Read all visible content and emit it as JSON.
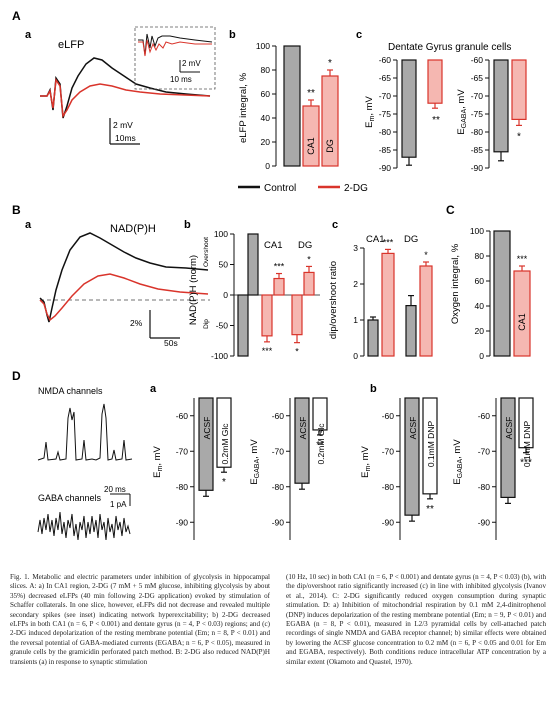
{
  "panel_labels": {
    "A": "A",
    "B": "B",
    "C": "C",
    "D": "D"
  },
  "panelA": {
    "a": {
      "sub": "a",
      "title": "eLFP",
      "inset_scale_mv": "2 mV",
      "inset_scale_ms": "10 ms",
      "scale_mv": "2 mV",
      "scale_ms": "10ms"
    },
    "legend": {
      "control": "Control",
      "dg2": "2-DG"
    },
    "b": {
      "sub": "b",
      "ylabel": "eLFP integral, %",
      "ticks": [
        "100",
        "80",
        "60",
        "40",
        "20",
        "0"
      ],
      "bar_labels": [
        "CA1",
        "DG"
      ],
      "sig": [
        "**",
        "*"
      ]
    },
    "c": {
      "sub": "c",
      "title": "Dentate Gyrus granule cells",
      "em_label": "E",
      "em_sub": "m",
      "em_unit": ", mV",
      "egaba_label": "E",
      "egaba_sub": "GABA",
      "egaba_unit": ", mV",
      "em_ticks": [
        "-60",
        "-65",
        "-70",
        "-75",
        "-80",
        "-85",
        "-90"
      ],
      "egaba_ticks": [
        "-60",
        "-65",
        "-70",
        "-75",
        "-80",
        "-85",
        "-90"
      ],
      "sig": [
        "**",
        "*"
      ]
    }
  },
  "panelB": {
    "a": {
      "sub": "a",
      "title": "NAD(P)H",
      "scale_pct": "2%",
      "scale_s": "50s"
    },
    "b": {
      "sub": "b",
      "ylabel": "NAD(P)H (norm)",
      "yunit_top": "Overshoot",
      "yunit_bot": "Dip",
      "ticks": [
        "100",
        "50",
        "0",
        "-50",
        "-100"
      ],
      "group_labels": [
        "CA1",
        "DG"
      ],
      "sig_over": [
        "***",
        "*"
      ],
      "sig_dip": [
        "***",
        "*"
      ]
    },
    "c": {
      "sub": "c",
      "ylabel": "dip/overshoot ratio",
      "ticks": [
        "3",
        "2",
        "1",
        "0"
      ],
      "group_labels": [
        "CA1",
        "DG"
      ],
      "sig": [
        "***",
        "*"
      ]
    }
  },
  "panelC": {
    "sub": "C",
    "ylabel": "Oxygen integral, %",
    "ticks": [
      "100",
      "80",
      "60",
      "40",
      "20",
      "0"
    ],
    "bar_label": "CA1",
    "sig": "***"
  },
  "panelD": {
    "nmda": "NMDA channels",
    "gaba": "GABA channels",
    "scale_ms": "20 ms",
    "scale_pa": "1 pA",
    "a": {
      "sub": "a",
      "em_label": "E",
      "em_sub": "m",
      "em_unit": ", mV",
      "eg_label": "E",
      "eg_sub": "GABA",
      "eg_unit": ", mV",
      "ticks": [
        "-60",
        "-70",
        "-80",
        "-90"
      ],
      "ctrl": "ACSF",
      "treat": "0.2mM Glc",
      "treat2": "0.2mM Glc",
      "sig": [
        "*",
        "**"
      ]
    },
    "b": {
      "sub": "b",
      "em_label": "E",
      "em_sub": "m",
      "em_unit": ", mV",
      "eg_label": "E",
      "eg_sub": "GABA",
      "eg_unit": ", mV",
      "ticks": [
        "-60",
        "-70",
        "-80",
        "-90"
      ],
      "ctrl": "ACSF",
      "treat": "0.1mM DNP",
      "treat2": "0.1mM DNP",
      "sig": [
        "**",
        "***"
      ]
    }
  },
  "chart_data": [
    {
      "type": "bar",
      "panel": "A-b",
      "categories": [
        "Control",
        "CA1",
        "DG"
      ],
      "values": [
        100,
        50,
        75
      ],
      "ylabel": "eLFP integral, %",
      "ylim": [
        0,
        100
      ]
    },
    {
      "type": "bar",
      "panel": "A-c-Em",
      "categories": [
        "Control",
        "2-DG"
      ],
      "values": [
        -87,
        -72
      ],
      "ylabel": "Em, mV",
      "ylim": [
        -90,
        -60
      ]
    },
    {
      "type": "bar",
      "panel": "A-c-EGABA",
      "categories": [
        "Control",
        "2-DG"
      ],
      "values": [
        -85.5,
        -76.5
      ],
      "ylabel": "EGABA, mV",
      "ylim": [
        -90,
        -60
      ]
    },
    {
      "type": "bar",
      "panel": "B-b",
      "categories": [
        "dip",
        "overshoot",
        "CA1 dip",
        "CA1 overshoot",
        "DG dip",
        "DG overshoot"
      ],
      "values": [
        -100,
        100,
        -67,
        27,
        -65,
        37
      ],
      "ylabel": "NAD(P)H (norm)",
      "ylim": [
        -100,
        100
      ]
    },
    {
      "type": "bar",
      "panel": "B-c",
      "categories": [
        "CA1 control",
        "CA1 2-DG",
        "DG control",
        "DG 2-DG"
      ],
      "values": [
        1.0,
        2.85,
        1.4,
        2.5
      ],
      "ylabel": "dip/overshoot ratio",
      "ylim": [
        0,
        3
      ]
    },
    {
      "type": "bar",
      "panel": "C",
      "categories": [
        "Control",
        "CA1"
      ],
      "values": [
        100,
        68
      ],
      "ylabel": "Oxygen integral, %",
      "ylim": [
        0,
        100
      ]
    },
    {
      "type": "bar",
      "panel": "D-a",
      "series": [
        {
          "name": "ACSF",
          "values": [
            -81,
            -79
          ]
        },
        {
          "name": "0.2mM Glc",
          "values": [
            -74.5,
            -64
          ]
        }
      ],
      "categories": [
        "Em",
        "EGABA"
      ],
      "ylim": [
        -95,
        -55
      ]
    },
    {
      "type": "bar",
      "panel": "D-b",
      "series": [
        {
          "name": "ACSF",
          "values": [
            -88,
            -83
          ]
        },
        {
          "name": "0.1mM DNP",
          "values": [
            -82,
            -69
          ]
        }
      ],
      "categories": [
        "Em",
        "EGABA"
      ],
      "ylim": [
        -95,
        -55
      ]
    }
  ],
  "caption": {
    "left": "Fig. 1. Metabolic and electric parameters under inhibition of glycolysis in hippocampal slices. A: a) In CA1 region, 2-DG (7 mM + 5 mM glucose, inhibiting glycolysis by about 35%) decreased eLFPs (40 min following 2-DG application) evoked by stimulation of Schaffer collaterals. In one slice, however, eLFPs did not decrease and revealed multiple secondary spikes (see inset) indicating network hyperexcitability; b) 2-DG decreased eLFPs in both CA1 (n = 6, P < 0.001) and dentate gyrus (n = 4, P < 0.03) regions; and (c) 2-DG induced depolarization of the resting membrane potential (Em; n = 8, P < 0.01) and the reversal potential of GABA-mediated currents (EGABA; n = 6, P < 0.05), measured in granule cells by the gramicidin perforated patch method. B: 2-DG also reduced NAD(P)H transients (a) in response to synaptic stimulation",
    "right": "(10 Hz, 10 sec) in both CA1 (n = 6, P < 0.001) and dentate gyrus (n = 4, P < 0.03) (b), with the dip/overshoot ratio significantly increased (c) in line with inhibited glycolysis (Ivanov et al., 2014). C: 2-DG significantly reduced oxygen consumption during synaptic stimulation. D: a) Inhibition of mitochondrial respiration by 0.1 mM 2,4-dinitrophenol (DNP) induces depolarization of the resting membrane potential (Em; n = 9, P < 0.01) and EGABA (n = 8, P < 0.01), measured in L2/3 pyramidal cells by cell-attached patch recordings of single NMDA and GABA receptor channel; b) similar effects were obtained by lowering the ACSF glucose concentration to 0.2 mM (n = 6, P < 0.05 and 0.01 for Em and EGABA, respectively). Both conditions reduce intracellular ATP concentration by a similar extent (Okamoto and Quastel, 1970)."
  }
}
